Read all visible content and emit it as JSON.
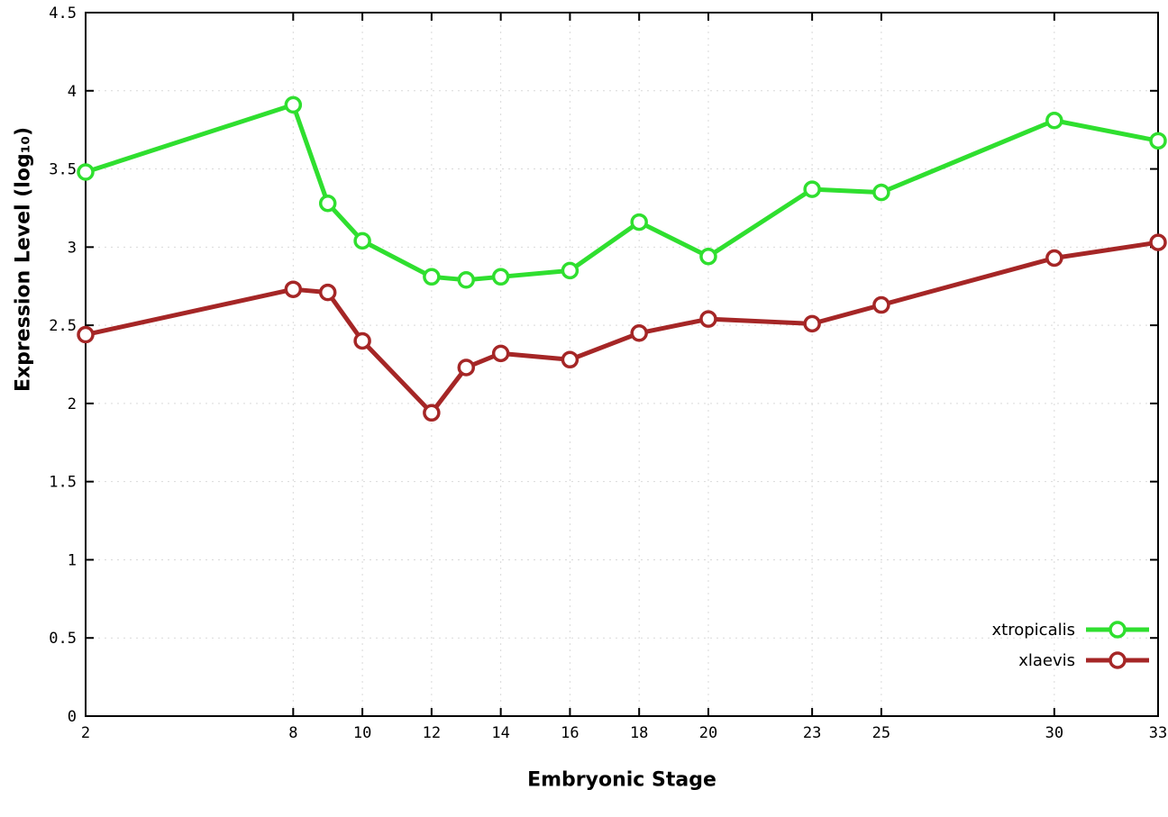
{
  "chart_data": {
    "type": "line",
    "title": "",
    "xlabel": "Embryonic Stage",
    "ylabel": "Expression Level (log₁₀)",
    "xlim": [
      2,
      33
    ],
    "ylim": [
      0,
      4.5
    ],
    "x_ticks": [
      2,
      8,
      10,
      12,
      14,
      16,
      18,
      20,
      23,
      25,
      30,
      33
    ],
    "y_ticks": [
      0,
      0.5,
      1,
      1.5,
      2,
      2.5,
      3,
      3.5,
      4,
      4.5
    ],
    "grid": true,
    "legend_position": "bottom-right",
    "x": [
      2,
      8,
      9,
      10,
      12,
      13,
      14,
      16,
      18,
      20,
      23,
      25,
      30,
      33
    ],
    "series": [
      {
        "name": "xtropicalis",
        "color": "#2fdf2f",
        "values": [
          3.48,
          3.91,
          3.28,
          3.04,
          2.81,
          2.79,
          2.81,
          2.85,
          3.16,
          2.94,
          3.37,
          3.35,
          3.81,
          3.68
        ]
      },
      {
        "name": "xlaevis",
        "color": "#a52626",
        "values": [
          2.44,
          2.73,
          2.71,
          2.4,
          1.94,
          2.23,
          2.32,
          2.28,
          2.45,
          2.54,
          2.51,
          2.63,
          2.93,
          3.03
        ]
      }
    ]
  }
}
